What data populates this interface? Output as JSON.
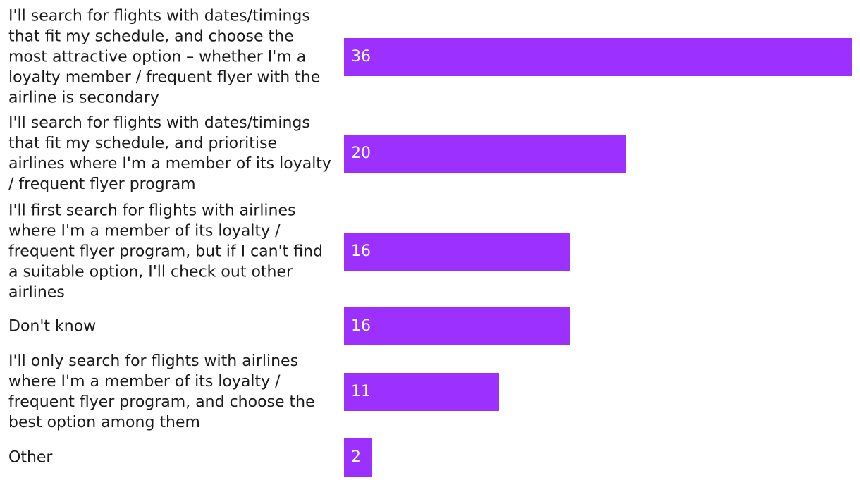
{
  "chart_data": {
    "type": "bar",
    "orientation": "horizontal",
    "title": "",
    "xlabel": "",
    "ylabel": "",
    "xlim": [
      0,
      36
    ],
    "grid": false,
    "legend": "none",
    "bar_color": "#9b30ff",
    "value_label_color": "#ffffff",
    "categories": [
      "I'll search for flights with dates/timings that fit my schedule, and choose the most attractive option – whether I'm a loyalty member / frequent flyer with the airline is secondary",
      "I'll search for flights with dates/timings that fit my schedule, and prioritise airlines where I'm a member of its loyalty / frequent flyer program",
      "I'll first search for flights with airlines where I'm a member of its loyalty / frequent flyer program, but if I can't find a suitable option, I'll check out other airlines",
      "Don't know",
      "I'll only search for flights with airlines where I'm a member of its loyalty / frequent flyer program, and choose the best option among them",
      "Other"
    ],
    "values": [
      36,
      20,
      16,
      16,
      11,
      2
    ]
  }
}
